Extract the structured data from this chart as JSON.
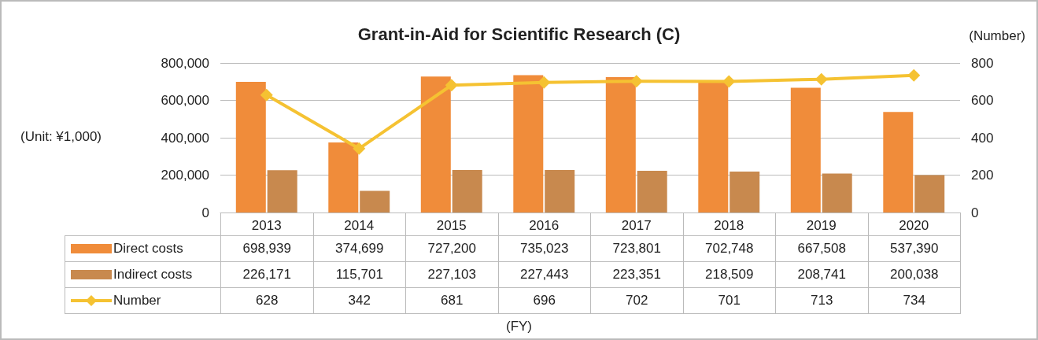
{
  "chart_data": {
    "type": "bar",
    "title": "Grant-in-Aid for Scientific Research (C)",
    "ylabel": "(Unit: ¥1,000)",
    "y2label": "(Number)",
    "annotations": [
      "(FY)"
    ],
    "categories": [
      "2013",
      "2014",
      "2015",
      "2016",
      "2017",
      "2018",
      "2019",
      "2020"
    ],
    "series": [
      {
        "name": "Direct costs",
        "color": "#f08c3a",
        "values": [
          698939,
          374699,
          727200,
          735023,
          723801,
          702748,
          667508,
          537390
        ],
        "value_labels": [
          "698,939",
          "374,699",
          "727,200",
          "735,023",
          "723,801",
          "702,748",
          "667,508",
          "537,390"
        ]
      },
      {
        "name": "Indirect costs",
        "color": "#c8894e",
        "values": [
          226171,
          115701,
          227103,
          227443,
          223351,
          218509,
          208741,
          200038
        ],
        "value_labels": [
          "226,171",
          "115,701",
          "227,103",
          "227,443",
          "223,351",
          "218,509",
          "208,741",
          "200,038"
        ]
      },
      {
        "name": "Number",
        "type": "line",
        "axis": "y2",
        "color": "#f5c232",
        "marker": "diamond",
        "values": [
          628,
          342,
          681,
          696,
          702,
          701,
          713,
          734
        ],
        "value_labels": [
          "628",
          "342",
          "681",
          "696",
          "702",
          "701",
          "713",
          "734"
        ]
      }
    ],
    "ylim": [
      0,
      800000
    ],
    "yticks": [
      {
        "value": 0,
        "label": "0"
      },
      {
        "value": 200000,
        "label": "200,000"
      },
      {
        "value": 400000,
        "label": "400,000"
      },
      {
        "value": 600000,
        "label": "600,000"
      },
      {
        "value": 800000,
        "label": "800,000"
      }
    ],
    "y2lim": [
      0,
      800
    ],
    "y2ticks": [
      0,
      200,
      400,
      600,
      800
    ],
    "grid": "y",
    "legend": "bottom"
  }
}
